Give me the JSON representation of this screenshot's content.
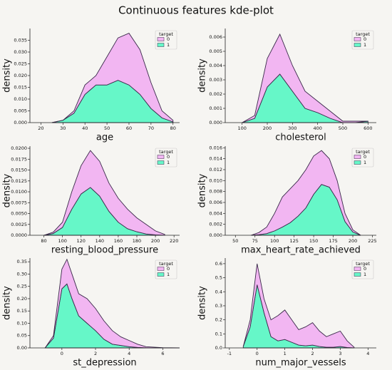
{
  "title": "Continuous features kde-plot",
  "chart_data": [
    {
      "type": "area",
      "stacked": true,
      "xlabel": "age",
      "ylabel": "density",
      "legend_title": "target",
      "legend": "upper right",
      "x": [
        25,
        30,
        35,
        40,
        45,
        50,
        55,
        60,
        65,
        70,
        75,
        80
      ],
      "series": [
        {
          "name": "0",
          "color": "#f2b6f2",
          "values": [
            0,
            0,
            0.001,
            0.004,
            0.004,
            0.012,
            0.018,
            0.022,
            0.019,
            0.011,
            0.003,
            0.0007
          ]
        },
        {
          "name": "1",
          "color": "#66f7c8",
          "values": [
            0,
            0.001,
            0.004,
            0.012,
            0.016,
            0.016,
            0.018,
            0.016,
            0.012,
            0.006,
            0.002,
            0.0003
          ]
        }
      ],
      "xlim": [
        15,
        83
      ],
      "xticks": [
        20,
        30,
        40,
        50,
        60,
        70,
        80
      ],
      "ylim": [
        0,
        0.04
      ],
      "yticks": [
        {
          "value": 0,
          "label": "0.000"
        },
        0.005,
        {
          "value": 0.01,
          "label": "0.010"
        },
        0.015,
        {
          "value": 0.02,
          "label": "0.020"
        },
        0.025,
        {
          "value": 0.03,
          "label": "0.030"
        },
        0.035
      ]
    },
    {
      "type": "area",
      "stacked": true,
      "xlabel": "cholesterol",
      "ylabel": "density",
      "legend_title": "target",
      "legend": "upper right",
      "x": [
        100,
        150,
        200,
        250,
        300,
        350,
        400,
        450,
        500,
        550,
        600
      ],
      "series": [
        {
          "name": "0",
          "color": "#f2b6f2",
          "values": [
            0,
            0.0002,
            0.002,
            0.0028,
            0.0018,
            0.0012,
            0.0008,
            0.0005,
            0.0001,
            0.0001,
            0
          ]
        },
        {
          "name": "1",
          "color": "#66f7c8",
          "values": [
            0,
            0.0003,
            0.0025,
            0.0034,
            0.0022,
            0.001,
            0.0007,
            0.0003,
            0,
            0,
            0.0001
          ]
        }
      ],
      "xlim": [
        33,
        633
      ],
      "xticks": [
        100,
        200,
        300,
        400,
        500,
        600
      ],
      "ylim": [
        0,
        0.0066
      ],
      "yticks": [
        {
          "value": 0,
          "label": "0.000"
        },
        0.001,
        0.002,
        0.003,
        0.004,
        0.005,
        0.006
      ]
    },
    {
      "type": "area",
      "stacked": true,
      "xlabel": "resting_blood_pressure",
      "ylabel": "density",
      "legend_title": "target",
      "legend": "upper right",
      "x": [
        80,
        90,
        100,
        110,
        120,
        130,
        140,
        150,
        160,
        170,
        180,
        190,
        200,
        210
      ],
      "series": [
        {
          "name": "0",
          "color": "#f2b6f2",
          "values": [
            0,
            0.0003,
            0.0012,
            0.004,
            0.0065,
            0.0085,
            0.008,
            0.0065,
            0.0055,
            0.0045,
            0.0032,
            0.0022,
            0.0009,
            0.0002
          ]
        },
        {
          "name": "1",
          "color": "#66f7c8",
          "values": [
            0,
            0.0004,
            0.0018,
            0.006,
            0.0095,
            0.011,
            0.009,
            0.0055,
            0.003,
            0.0015,
            0.0008,
            0.0003,
            0.0001,
            0
          ]
        }
      ],
      "xlim": [
        65,
        226
      ],
      "xticks": [
        80,
        100,
        120,
        140,
        160,
        180,
        200,
        220
      ],
      "ylim": [
        0,
        0.0205
      ],
      "yticks": [
        {
          "value": 0,
          "label": "0.0000"
        },
        0.0025,
        {
          "value": 0.005,
          "label": "0.0050"
        },
        0.0075,
        {
          "value": 0.01,
          "label": "0.0100"
        },
        0.0125,
        {
          "value": 0.015,
          "label": "0.0150"
        },
        0.0175,
        {
          "value": 0.02,
          "label": "0.0200"
        }
      ]
    },
    {
      "type": "area",
      "stacked": true,
      "xlabel": "max_heart_rate_achieved",
      "ylabel": "density",
      "legend_title": "target",
      "legend": "upper right",
      "x": [
        70,
        80,
        90,
        100,
        110,
        120,
        130,
        140,
        150,
        160,
        170,
        180,
        190,
        200,
        210
      ],
      "series": [
        {
          "name": "0",
          "color": "#f2b6f2",
          "values": [
            0,
            0.0004,
            0.0012,
            0.0032,
            0.0055,
            0.0062,
            0.0065,
            0.007,
            0.007,
            0.0062,
            0.0052,
            0.0035,
            0.0015,
            0.0004,
            0
          ]
        },
        {
          "name": "1",
          "color": "#66f7c8",
          "values": [
            0,
            0.0001,
            0.0003,
            0.0008,
            0.0015,
            0.0023,
            0.0035,
            0.005,
            0.0075,
            0.0093,
            0.0088,
            0.0065,
            0.0025,
            0.0006,
            0
          ]
        }
      ],
      "xlim": [
        37,
        230
      ],
      "xticks": [
        50,
        75,
        100,
        125,
        150,
        175,
        200,
        225
      ],
      "ylim": [
        0,
        0.0163
      ],
      "yticks": [
        {
          "value": 0,
          "label": "0.000"
        },
        0.002,
        0.004,
        0.006,
        0.008,
        {
          "value": 0.01,
          "label": "0.010"
        },
        0.012,
        0.014,
        0.016
      ]
    },
    {
      "type": "area",
      "stacked": true,
      "xlabel": "st_depression",
      "ylabel": "density",
      "legend_title": "target",
      "legend": "upper right",
      "x": [
        -1,
        -0.5,
        0,
        0.3,
        0.6,
        1,
        1.5,
        2,
        2.5,
        3,
        3.5,
        4,
        4.5,
        5,
        6,
        7
      ],
      "series": [
        {
          "name": "0",
          "color": "#f2b6f2",
          "values": [
            0,
            0.01,
            0.08,
            0.1,
            0.1,
            0.09,
            0.1,
            0.09,
            0.075,
            0.055,
            0.035,
            0.025,
            0.013,
            0.0045,
            0.001,
            0
          ]
        },
        {
          "name": "1",
          "color": "#66f7c8",
          "values": [
            0,
            0.04,
            0.24,
            0.26,
            0.2,
            0.13,
            0.1,
            0.07,
            0.035,
            0.015,
            0.01,
            0.005,
            0.002,
            0.0005,
            0,
            0
          ]
        }
      ],
      "xlim": [
        -1.9,
        7
      ],
      "xticks": [
        0,
        2,
        4,
        6
      ],
      "ylim": [
        0,
        0.365
      ],
      "yticks": [
        {
          "value": 0,
          "label": "0.00"
        },
        0.05,
        {
          "value": 0.1,
          "label": "0.10"
        },
        0.15,
        {
          "value": 0.2,
          "label": "0.20"
        },
        0.25,
        {
          "value": 0.3,
          "label": "0.30"
        },
        0.35
      ]
    },
    {
      "type": "area",
      "stacked": true,
      "xlabel": "num_major_vessels",
      "ylabel": "density",
      "legend_title": "target",
      "legend": "upper right",
      "x": [
        -0.5,
        -0.25,
        0,
        0.25,
        0.5,
        0.75,
        1,
        1.25,
        1.5,
        1.75,
        2,
        2.25,
        2.5,
        2.75,
        3,
        3.25,
        3.5
      ],
      "series": [
        {
          "name": "0",
          "color": "#f2b6f2",
          "values": [
            0,
            0.05,
            0.15,
            0.1,
            0.12,
            0.18,
            0.21,
            0.16,
            0.11,
            0.135,
            0.16,
            0.11,
            0.075,
            0.095,
            0.11,
            0.047,
            0.005
          ]
        },
        {
          "name": "1",
          "color": "#66f7c8",
          "values": [
            0.01,
            0.15,
            0.45,
            0.25,
            0.08,
            0.05,
            0.06,
            0.04,
            0.02,
            0.015,
            0.02,
            0.01,
            0.005,
            0.005,
            0.01,
            0.003,
            0
          ]
        }
      ],
      "xlim": [
        -1.15,
        4.3
      ],
      "xticks": [
        -1,
        0,
        1,
        2,
        3,
        4
      ],
      "ylim": [
        0,
        0.64
      ],
      "yticks": [
        {
          "value": 0,
          "label": "0.0"
        },
        0.1,
        0.2,
        0.3,
        0.4,
        0.5,
        0.6
      ]
    }
  ]
}
